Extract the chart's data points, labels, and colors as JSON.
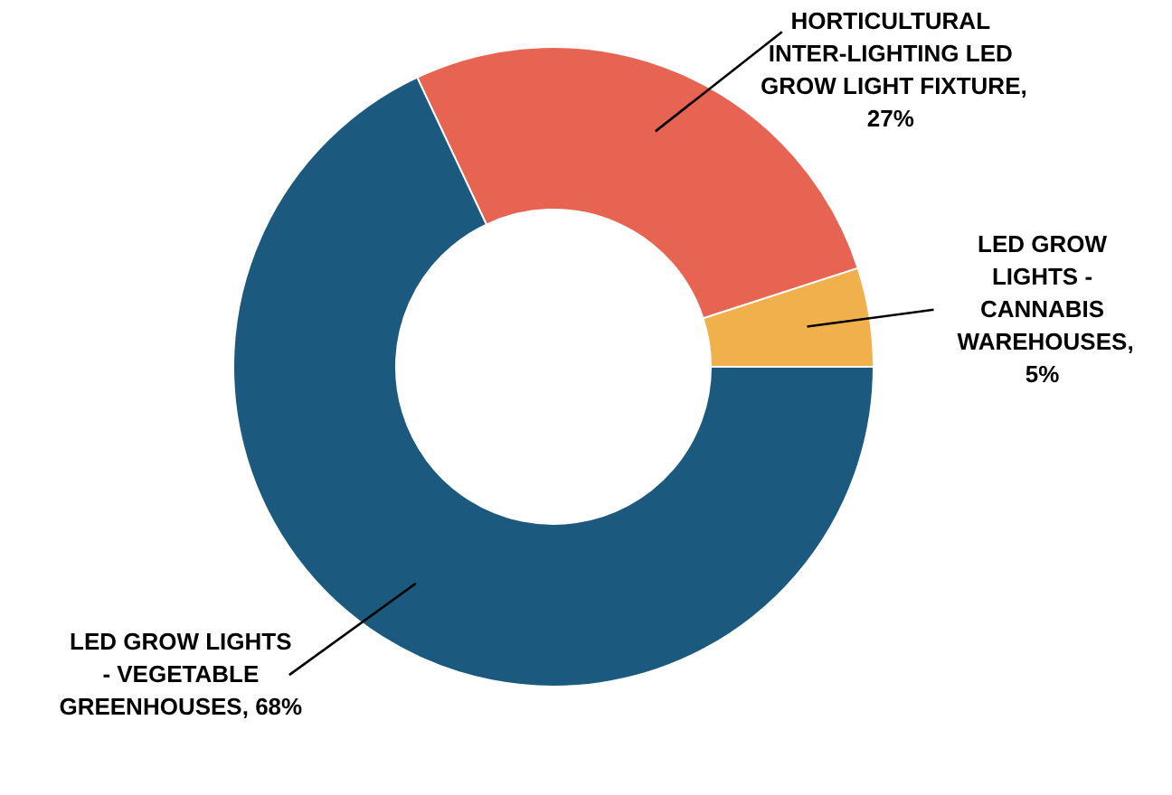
{
  "chart_data": {
    "type": "donut",
    "categories": [
      "LED GROW LIGHTS - CANNABIS WAREHOUSES",
      "HORTICULTURAL INTER-LIGHTING LED GROW LIGHT FIXTURE",
      "LED GROW LIGHTS - VEGETABLE GREENHOUSES"
    ],
    "values": [
      5,
      27,
      68
    ],
    "colors": [
      "#f0b04c",
      "#e86452",
      "#1b5a7e"
    ],
    "value_labels": [
      ", 5%",
      ", 27%",
      ", 68%"
    ]
  }
}
